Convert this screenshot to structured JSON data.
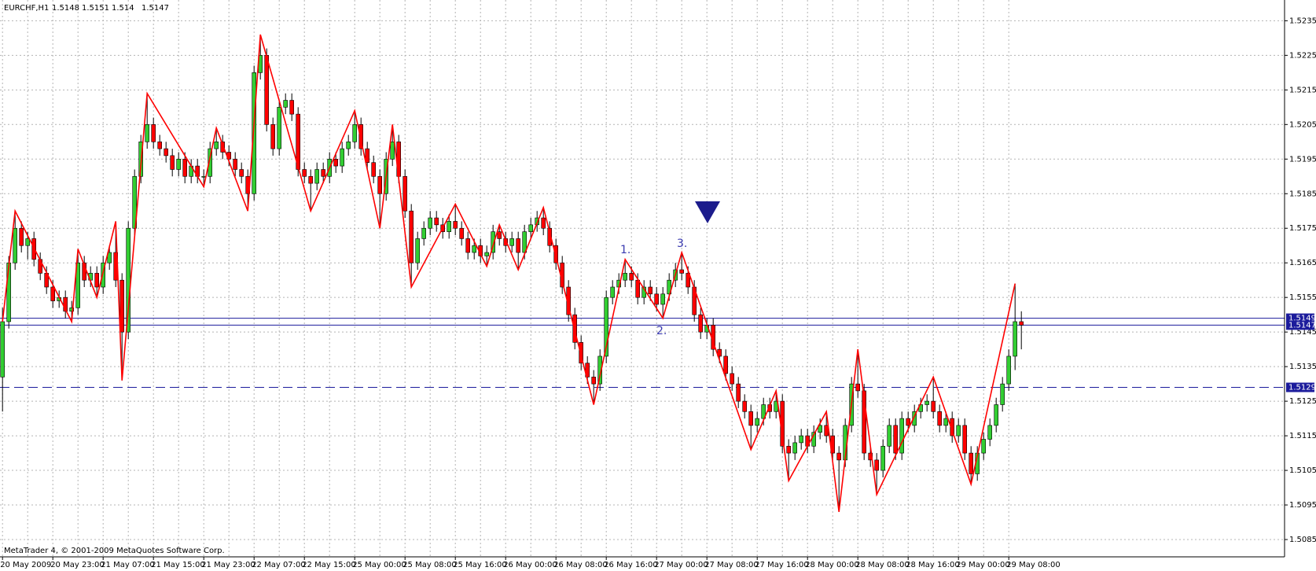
{
  "chart_data": {
    "type": "candlestick",
    "symbol": "EURCHF,H1",
    "footer": "MetaTrader 4, © 2001-2009 MetaQuotes Software Corp.",
    "categories": [
      "20 May 2009",
      null,
      null,
      null,
      null,
      null,
      null,
      null,
      "20 May 23:00",
      null,
      null,
      null,
      null,
      null,
      null,
      null,
      "21 May 07:00",
      null,
      null,
      null,
      null,
      null,
      null,
      null,
      "21 May 15:00",
      null,
      null,
      null,
      null,
      null,
      null,
      null,
      "21 May 23:00",
      null,
      null,
      null,
      null,
      null,
      null,
      null,
      "22 May 07:00",
      null,
      null,
      null,
      null,
      null,
      null,
      null,
      "22 May 15:00",
      null,
      null,
      null,
      null,
      null,
      null,
      null,
      "25 May 00:00",
      null,
      null,
      null,
      null,
      null,
      null,
      null,
      "25 May 08:00",
      null,
      null,
      null,
      null,
      null,
      null,
      null,
      "25 May 16:00",
      null,
      null,
      null,
      null,
      null,
      null,
      null,
      "26 May 00:00",
      null,
      null,
      null,
      null,
      null,
      null,
      null,
      "26 May 08:00",
      null,
      null,
      null,
      null,
      null,
      null,
      null,
      "26 May 16:00",
      null,
      null,
      null,
      null,
      null,
      null,
      null,
      "27 May 00:00",
      null,
      null,
      null,
      null,
      null,
      null,
      null,
      "27 May 08:00",
      null,
      null,
      null,
      null,
      null,
      null,
      null,
      "27 May 16:00",
      null,
      null,
      null,
      null,
      null,
      null,
      null,
      "28 May 00:00",
      null,
      null,
      null,
      null,
      null,
      null,
      null,
      "28 May 08:00",
      null,
      null,
      null,
      null,
      null,
      null,
      null,
      "28 May 16:00",
      null,
      null,
      null,
      null,
      null,
      null,
      null,
      "29 May 00:00",
      null,
      null,
      null,
      null,
      null,
      null,
      null,
      "29 May 08:00",
      null,
      null
    ],
    "open": [
      1.5132,
      1.5148,
      1.5165,
      1.5175,
      1.517,
      1.5172,
      1.5166,
      1.5162,
      1.5158,
      1.5154,
      1.5155,
      1.5151,
      1.5152,
      1.5165,
      1.516,
      1.5162,
      1.5158,
      1.5165,
      1.5168,
      1.516,
      1.5145,
      1.5175,
      1.519,
      1.52,
      1.5205,
      1.52,
      1.5198,
      1.5196,
      1.5192,
      1.5195,
      1.519,
      1.5193,
      1.519,
      1.519,
      1.5198,
      1.52,
      1.5197,
      1.5195,
      1.5192,
      1.519,
      1.5185,
      1.522,
      1.5225,
      1.5205,
      1.5198,
      1.521,
      1.5212,
      1.5208,
      1.5192,
      1.519,
      1.5188,
      1.5192,
      1.519,
      1.5195,
      1.5193,
      1.5198,
      1.52,
      1.5205,
      1.5198,
      1.5194,
      1.519,
      1.5185,
      1.5195,
      1.52,
      1.519,
      1.518,
      1.5165,
      1.5172,
      1.5175,
      1.5178,
      1.5176,
      1.5174,
      1.5177,
      1.5175,
      1.5172,
      1.5168,
      1.517,
      1.5167,
      1.5168,
      1.5174,
      1.5172,
      1.517,
      1.5172,
      1.5168,
      1.5174,
      1.5176,
      1.5178,
      1.5175,
      1.517,
      1.5165,
      1.5158,
      1.515,
      1.5142,
      1.5136,
      1.5132,
      1.513,
      1.5138,
      1.5155,
      1.5158,
      1.516,
      1.5162,
      1.516,
      1.5155,
      1.5158,
      1.5156,
      1.5153,
      1.5156,
      1.516,
      1.5163,
      1.5162,
      1.5158,
      1.515,
      1.5145,
      1.5147,
      1.514,
      1.5138,
      1.5133,
      1.513,
      1.5125,
      1.5122,
      1.5118,
      1.512,
      1.5124,
      1.5122,
      1.5125,
      1.5112,
      1.511,
      1.5113,
      1.5115,
      1.5112,
      1.5116,
      1.5118,
      1.5115,
      1.511,
      1.5108,
      1.5118,
      1.513,
      1.5128,
      1.511,
      1.5108,
      1.5105,
      1.5112,
      1.5118,
      1.511,
      1.512,
      1.5118,
      1.5122,
      1.5124,
      1.5125,
      1.5122,
      1.5118,
      1.512,
      1.5115,
      1.5118,
      1.511,
      1.5104,
      1.511,
      1.5114,
      1.5118,
      1.5124,
      1.513,
      1.5138,
      1.5148
    ],
    "high": [
      1.5152,
      1.5167,
      1.518,
      1.5177,
      1.5174,
      1.5174,
      1.5168,
      1.5164,
      1.516,
      1.5157,
      1.5157,
      1.5154,
      1.5169,
      1.5167,
      1.5164,
      1.5164,
      1.5167,
      1.517,
      1.5177,
      1.5162,
      1.5177,
      1.5192,
      1.5202,
      1.5214,
      1.5207,
      1.5202,
      1.52,
      1.5198,
      1.5197,
      1.5197,
      1.5195,
      1.5195,
      1.5192,
      1.52,
      1.5204,
      1.5202,
      1.5199,
      1.5197,
      1.5194,
      1.5192,
      1.5222,
      1.5231,
      1.5227,
      1.5207,
      1.5212,
      1.5214,
      1.5214,
      1.521,
      1.5194,
      1.5192,
      1.5194,
      1.5194,
      1.5197,
      1.5197,
      1.52,
      1.5202,
      1.5209,
      1.5207,
      1.52,
      1.5196,
      1.5192,
      1.5197,
      1.5205,
      1.5202,
      1.5192,
      1.5182,
      1.5174,
      1.5177,
      1.518,
      1.518,
      1.5178,
      1.5179,
      1.5182,
      1.5177,
      1.5174,
      1.5172,
      1.5172,
      1.517,
      1.5176,
      1.5176,
      1.5174,
      1.5174,
      1.5174,
      1.5176,
      1.5178,
      1.518,
      1.5181,
      1.5177,
      1.5172,
      1.5167,
      1.516,
      1.5152,
      1.5144,
      1.5138,
      1.5134,
      1.514,
      1.5157,
      1.516,
      1.5162,
      1.5166,
      1.5164,
      1.5162,
      1.516,
      1.516,
      1.5158,
      1.5158,
      1.5162,
      1.5165,
      1.5168,
      1.5164,
      1.516,
      1.5152,
      1.5149,
      1.5149,
      1.5142,
      1.514,
      1.5135,
      1.5132,
      1.5127,
      1.5124,
      1.5122,
      1.5126,
      1.5126,
      1.5128,
      1.5127,
      1.5114,
      1.5115,
      1.5117,
      1.5117,
      1.5118,
      1.512,
      1.5122,
      1.5117,
      1.5112,
      1.512,
      1.5132,
      1.514,
      1.513,
      1.5112,
      1.511,
      1.5114,
      1.512,
      1.512,
      1.5122,
      1.5122,
      1.5124,
      1.5126,
      1.5127,
      1.5132,
      1.5124,
      1.5122,
      1.5122,
      1.512,
      1.512,
      1.5112,
      1.5112,
      1.5116,
      1.512,
      1.5126,
      1.5132,
      1.514,
      1.5159,
      1.5151
    ],
    "low": [
      1.5122,
      1.5146,
      1.5163,
      1.5168,
      1.5166,
      1.5164,
      1.516,
      1.5156,
      1.5152,
      1.5152,
      1.5149,
      1.5148,
      1.515,
      1.5158,
      1.5158,
      1.5155,
      1.5156,
      1.5163,
      1.5158,
      1.5131,
      1.5143,
      1.5173,
      1.5188,
      1.5198,
      1.5198,
      1.5196,
      1.5194,
      1.519,
      1.519,
      1.5188,
      1.5188,
      1.5188,
      1.5187,
      1.5188,
      1.5196,
      1.5195,
      1.5193,
      1.519,
      1.5188,
      1.518,
      1.5183,
      1.5218,
      1.5203,
      1.5196,
      1.5196,
      1.5208,
      1.5206,
      1.519,
      1.5188,
      1.518,
      1.5186,
      1.5188,
      1.5188,
      1.5191,
      1.5191,
      1.5196,
      1.5198,
      1.5196,
      1.5192,
      1.5188,
      1.5175,
      1.5183,
      1.5193,
      1.5188,
      1.5178,
      1.5158,
      1.5163,
      1.517,
      1.5173,
      1.5174,
      1.5172,
      1.5172,
      1.5173,
      1.517,
      1.5166,
      1.5166,
      1.5165,
      1.5164,
      1.5166,
      1.517,
      1.5168,
      1.5168,
      1.5163,
      1.5166,
      1.5172,
      1.5174,
      1.5173,
      1.5168,
      1.5163,
      1.5156,
      1.5148,
      1.514,
      1.5134,
      1.513,
      1.5124,
      1.5128,
      1.5136,
      1.5153,
      1.5156,
      1.5158,
      1.5158,
      1.5153,
      1.5153,
      1.5154,
      1.5151,
      1.5149,
      1.5154,
      1.5158,
      1.516,
      1.5156,
      1.5148,
      1.5143,
      1.5143,
      1.5138,
      1.5136,
      1.5131,
      1.5128,
      1.5123,
      1.512,
      1.5111,
      1.5116,
      1.5118,
      1.512,
      1.512,
      1.511,
      1.5102,
      1.5108,
      1.5111,
      1.511,
      1.511,
      1.5114,
      1.5113,
      1.5108,
      1.5093,
      1.5106,
      1.5116,
      1.5126,
      1.5108,
      1.5106,
      1.5098,
      1.5103,
      1.511,
      1.5108,
      1.5108,
      1.5116,
      1.5116,
      1.512,
      1.5122,
      1.512,
      1.5116,
      1.5116,
      1.5113,
      1.5113,
      1.5108,
      1.5101,
      1.5102,
      1.5108,
      1.5112,
      1.5116,
      1.5122,
      1.5128,
      1.5134,
      1.514
    ],
    "close": [
      1.5148,
      1.5165,
      1.5175,
      1.517,
      1.5172,
      1.5166,
      1.5162,
      1.5158,
      1.5154,
      1.5155,
      1.5151,
      1.5152,
      1.5165,
      1.516,
      1.5162,
      1.5158,
      1.5165,
      1.5168,
      1.516,
      1.5145,
      1.5175,
      1.519,
      1.52,
      1.5205,
      1.52,
      1.5198,
      1.5196,
      1.5192,
      1.5195,
      1.519,
      1.5193,
      1.519,
      1.519,
      1.5198,
      1.52,
      1.5197,
      1.5195,
      1.5192,
      1.519,
      1.5185,
      1.522,
      1.5225,
      1.5205,
      1.5198,
      1.521,
      1.5212,
      1.5208,
      1.5192,
      1.519,
      1.5188,
      1.5192,
      1.519,
      1.5195,
      1.5193,
      1.5198,
      1.52,
      1.5205,
      1.5198,
      1.5194,
      1.519,
      1.5185,
      1.5195,
      1.52,
      1.519,
      1.518,
      1.5165,
      1.5172,
      1.5175,
      1.5178,
      1.5176,
      1.5174,
      1.5177,
      1.5175,
      1.5172,
      1.5168,
      1.517,
      1.5167,
      1.5168,
      1.5174,
      1.5172,
      1.517,
      1.5172,
      1.5168,
      1.5174,
      1.5176,
      1.5178,
      1.5175,
      1.517,
      1.5165,
      1.5158,
      1.515,
      1.5142,
      1.5136,
      1.5132,
      1.513,
      1.5138,
      1.5155,
      1.5158,
      1.516,
      1.5162,
      1.516,
      1.5155,
      1.5158,
      1.5156,
      1.5153,
      1.5156,
      1.516,
      1.5163,
      1.5162,
      1.5158,
      1.515,
      1.5145,
      1.5147,
      1.514,
      1.5138,
      1.5133,
      1.513,
      1.5125,
      1.5122,
      1.5118,
      1.512,
      1.5124,
      1.5122,
      1.5125,
      1.5112,
      1.511,
      1.5113,
      1.5115,
      1.5112,
      1.5116,
      1.5118,
      1.5115,
      1.511,
      1.5108,
      1.5118,
      1.513,
      1.5128,
      1.511,
      1.5108,
      1.5105,
      1.5112,
      1.5118,
      1.511,
      1.512,
      1.5118,
      1.5122,
      1.5124,
      1.5125,
      1.5122,
      1.5118,
      1.512,
      1.5115,
      1.5118,
      1.511,
      1.5104,
      1.511,
      1.5114,
      1.5118,
      1.5124,
      1.513,
      1.5138,
      1.5148,
      1.5147
    ],
    "up_color": "#32cd32",
    "down_color": "#ff0000",
    "zigzag": {
      "color": "#ff0000",
      "x": [
        0,
        2,
        11,
        12,
        15,
        18,
        19,
        23,
        32,
        34,
        39,
        41,
        49,
        56,
        60,
        62,
        65,
        72,
        77,
        79,
        82,
        86,
        94,
        99,
        105,
        108,
        119,
        123,
        125,
        131,
        133,
        136,
        139,
        148,
        154,
        161
      ],
      "values": [
        1.5148,
        1.518,
        1.5148,
        1.5169,
        1.5155,
        1.5177,
        1.5131,
        1.5214,
        1.5187,
        1.5204,
        1.518,
        1.5231,
        1.518,
        1.5209,
        1.5175,
        1.5205,
        1.5158,
        1.5182,
        1.5164,
        1.5176,
        1.5163,
        1.5181,
        1.5124,
        1.5166,
        1.5149,
        1.5168,
        1.5111,
        1.5128,
        1.5102,
        1.5122,
        1.5093,
        1.514,
        1.5098,
        1.5132,
        1.5101,
        1.5159
      ]
    },
    "levels": [
      {
        "value": 1.5149,
        "style": "solid"
      },
      {
        "value": 1.5147,
        "style": "solid"
      },
      {
        "value": 1.5129,
        "style": "dashed"
      }
    ],
    "level_color": "#1c1c9c",
    "annotations": [
      "1.",
      "2.",
      "3."
    ],
    "ylim": [
      1.508,
      1.5241
    ],
    "yticks": [
      1.5235,
      1.5225,
      1.5215,
      1.5205,
      1.5195,
      1.5185,
      1.5175,
      1.5165,
      1.5155,
      1.5145,
      1.5135,
      1.5125,
      1.5115,
      1.5105,
      1.5095,
      1.5085
    ],
    "grid": true
  }
}
